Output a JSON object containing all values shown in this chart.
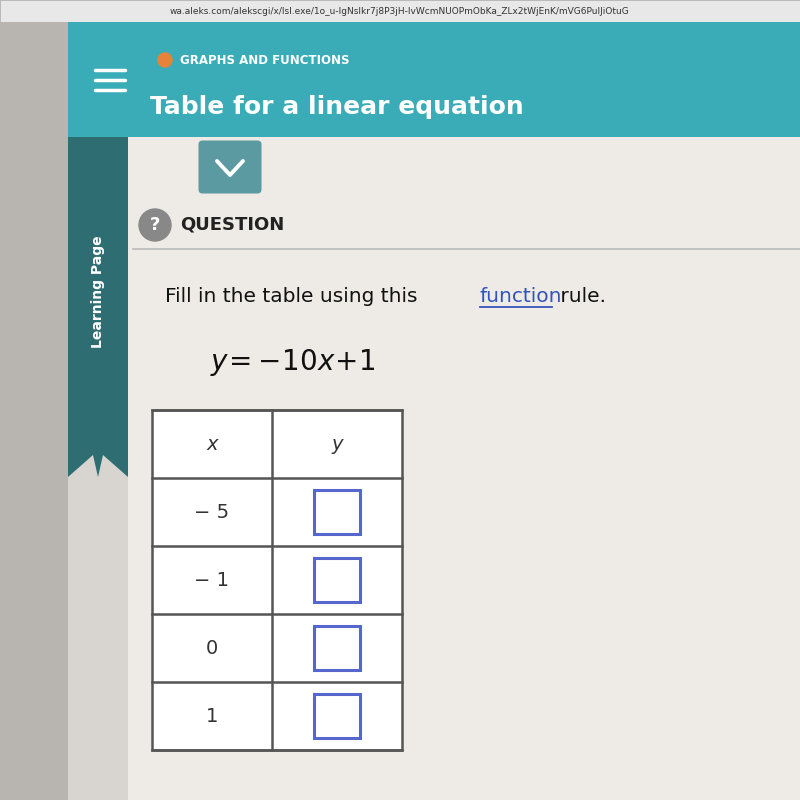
{
  "header_bg_color": "#3aacb8",
  "header_text1": "GRAPHS AND FUNCTIONS",
  "header_text2": "Table for a linear equation",
  "header_dot_color": "#e8823a",
  "page_bg_color": "#d8d4cf",
  "content_bg_color": "#eeeae6",
  "question_label": "QUESTION",
  "instruction_plain1": "Fill in the table using this ",
  "instruction_link": "function",
  "instruction_plain2": " rule.",
  "col_headers": [
    "x",
    "y"
  ],
  "x_values": [
    "− 5",
    "− 1",
    "0",
    "1"
  ],
  "sidebar_text": "Learning Page",
  "sidebar_bg": "#2e6e72",
  "left_panel_bg": "#b8b4b0",
  "table_border_color": "#555555",
  "input_box_color": "#ffffff",
  "input_box_border": "#5566cc",
  "chevron_bg": "#5a9aa0",
  "url_text": "wa.aleks.com/alekscgi/x/lsl.exe/1o_u-lgNslkr7j8P3jH-lvWcmNUOPmObKa_ZLx2tWjEnK/mVG6PulJiOtuG",
  "url_bar_bg": "#e8e8e8",
  "question_circle_bg": "#888888"
}
